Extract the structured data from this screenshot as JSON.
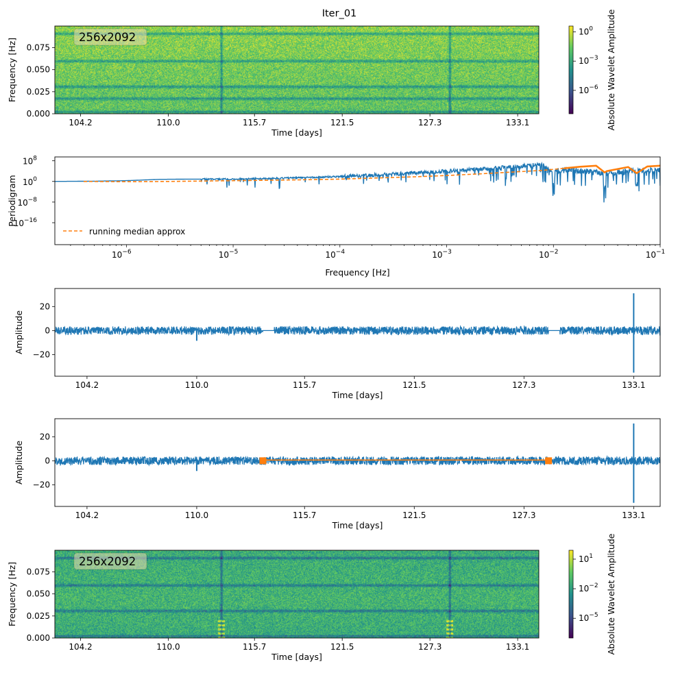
{
  "figure": {
    "title": "Iter_01"
  },
  "colors": {
    "series": "#1f77b4",
    "running_median": "#ff7f0e",
    "gaps": "#ff7f0e",
    "viridis": [
      "#440154",
      "#3b528b",
      "#21918c",
      "#5ec962",
      "#fde725"
    ]
  },
  "chart_data": [
    {
      "id": "spectrogram_original",
      "type": "heatmap",
      "annotation": "256x2092",
      "xlabel": "Time [days]",
      "ylabel": "Frequency [Hz]",
      "xlim": [
        102.5,
        134.5
      ],
      "ylim": [
        0,
        0.0995
      ],
      "xticks": [
        104.2,
        110.0,
        115.7,
        121.5,
        127.3,
        133.1
      ],
      "xtick_labels": [
        "104.2",
        "110.0",
        "115.7",
        "121.5",
        "127.3",
        "133.1"
      ],
      "yticks": [
        0,
        0.025,
        0.05,
        0.075
      ],
      "ytick_labels": [
        "0.000",
        "0.025",
        "0.050",
        "0.075"
      ],
      "frequency_dark_bands_hz": [
        0.0025,
        0.0175,
        0.031,
        0.06,
        0.091
      ],
      "time_glitch_lines_days": [
        113.5,
        128.6
      ],
      "colorbar": {
        "label": "Absolute Wavelet Amplitude",
        "scale": "log",
        "tick_exponents": [
          0,
          -3,
          -6
        ],
        "tick_labels": [
          "10^0",
          "10^-3",
          "10^-6"
        ],
        "range_log10": [
          -8.4,
          0.6
        ]
      }
    },
    {
      "id": "periodogram",
      "type": "line",
      "xlabel": "Frequency [Hz]",
      "ylabel": "Periodigram",
      "xscale": "log",
      "yscale": "log",
      "xlim_log10": [
        -6.67,
        -1
      ],
      "ylim_log10": [
        -24.5,
        9.5
      ],
      "xtick_exponents": [
        -6,
        -5,
        -4,
        -3,
        -2,
        -1
      ],
      "xtick_labels": [
        "10^-6",
        "10^-5",
        "10^-4",
        "10^-3",
        "10^-2",
        "10^-1"
      ],
      "ytick_exponents": [
        8,
        0,
        -8,
        -16
      ],
      "ytick_labels": [
        "10^8",
        "10^0",
        "10^-8",
        "10^-16"
      ],
      "series": [
        {
          "name": "periodogram",
          "style": "solid",
          "points_log10": [
            [
              -6.67,
              0
            ],
            [
              -6.3,
              0.1
            ],
            [
              -6.0,
              0.3
            ],
            [
              -5.7,
              0.8
            ],
            [
              -5.4,
              0.9
            ],
            [
              -5.0,
              0.9
            ],
            [
              -4.6,
              1.2
            ],
            [
              -4.3,
              1.5
            ],
            [
              -4.0,
              1.9
            ],
            [
              -3.6,
              2.6
            ],
            [
              -3.3,
              3.3
            ],
            [
              -3.0,
              4.0
            ],
            [
              -2.6,
              5.0
            ],
            [
              -2.3,
              6.0
            ],
            [
              -2.1,
              6.8
            ],
            [
              -2.03,
              4.0
            ],
            [
              -1.8,
              4.4
            ],
            [
              -1.5,
              3.0
            ],
            [
              -1.25,
              4.0
            ],
            [
              -1.0,
              4.5
            ]
          ]
        },
        {
          "name": "running median approx",
          "style": "dashed",
          "points_log10": [
            [
              -6.4,
              0
            ],
            [
              -6.0,
              -0.1
            ],
            [
              -5.6,
              0
            ],
            [
              -5.2,
              0.2
            ],
            [
              -4.8,
              0.4
            ],
            [
              -4.4,
              0.6
            ],
            [
              -4.0,
              0.9
            ],
            [
              -3.6,
              1.4
            ],
            [
              -3.3,
              1.8
            ],
            [
              -3.0,
              2.3
            ],
            [
              -2.7,
              2.9
            ],
            [
              -2.4,
              3.6
            ],
            [
              -2.1,
              4.3
            ],
            [
              -1.9,
              5.1
            ],
            [
              -1.75,
              5.7
            ],
            [
              -1.6,
              6.1
            ],
            [
              -1.52,
              3.5
            ],
            [
              -1.5,
              4.0
            ],
            [
              -1.3,
              5.6
            ],
            [
              -1.22,
              3.2
            ],
            [
              -1.12,
              5.8
            ],
            [
              -1.0,
              6.1
            ]
          ]
        }
      ],
      "deep_dips_log10_freq": [
        -2.0,
        -1.52,
        -1.22
      ],
      "legend": {
        "entries": [
          "running median approx"
        ],
        "position": "lower-left"
      }
    },
    {
      "id": "amplitude_original",
      "type": "line",
      "xlabel": "Time [days]",
      "ylabel": "Amplitude",
      "xlim": [
        102.5,
        134.5
      ],
      "ylim": [
        -38,
        35
      ],
      "xticks": [
        104.2,
        110.0,
        115.7,
        121.5,
        127.3,
        133.1
      ],
      "xtick_labels": [
        "104.2",
        "110.0",
        "115.7",
        "121.5",
        "127.3",
        "133.1"
      ],
      "yticks": [
        20,
        0,
        -20
      ],
      "ytick_labels": [
        "20",
        "0",
        "−20"
      ],
      "noise_band": [
        -3.5,
        3.5
      ],
      "gaps_days": [
        [
          113.5,
          114.1
        ],
        [
          128.6,
          129.2
        ]
      ],
      "spikes": [
        {
          "t": 110.0,
          "min": -8.5,
          "max": 1.5
        },
        {
          "t": 133.1,
          "min": -35,
          "max": 31
        }
      ]
    },
    {
      "id": "amplitude_filled",
      "type": "line",
      "xlabel": "Time [days]",
      "ylabel": "Amplitude",
      "xlim": [
        102.5,
        134.5
      ],
      "ylim": [
        -38,
        35
      ],
      "xticks": [
        104.2,
        110.0,
        115.7,
        121.5,
        127.3,
        133.1
      ],
      "xtick_labels": [
        "104.2",
        "110.0",
        "115.7",
        "121.5",
        "127.3",
        "133.1"
      ],
      "yticks": [
        20,
        0,
        -20
      ],
      "ytick_labels": [
        "20",
        "0",
        "−20"
      ],
      "noise_band": [
        -3.5,
        3.5
      ],
      "gap_markers_days": [
        113.5,
        128.6
      ],
      "gap_fill_line": {
        "from": 113.5,
        "to": 128.6,
        "value": 0.6
      },
      "spikes": [
        {
          "t": 110.0,
          "min": -8.5,
          "max": 1.5
        },
        {
          "t": 133.1,
          "min": -35,
          "max": 31
        }
      ]
    },
    {
      "id": "spectrogram_filled",
      "type": "heatmap",
      "annotation": "256x2092",
      "xlabel": "Time [days]",
      "ylabel": "Frequency [Hz]",
      "xlim": [
        102.5,
        134.5
      ],
      "ylim": [
        0,
        0.0995
      ],
      "xticks": [
        104.2,
        110.0,
        115.7,
        121.5,
        127.3,
        133.1
      ],
      "xtick_labels": [
        "104.2",
        "110.0",
        "115.7",
        "121.5",
        "127.3",
        "133.1"
      ],
      "yticks": [
        0,
        0.025,
        0.05,
        0.075
      ],
      "ytick_labels": [
        "0.000",
        "0.025",
        "0.050",
        "0.075"
      ],
      "frequency_dark_bands_hz": [
        0.0025,
        0.031,
        0.06,
        0.091
      ],
      "time_glitch_lines_days": [
        113.5,
        128.6
      ],
      "colorbar": {
        "label": "Absolute Wavelet Amplitude",
        "scale": "log",
        "tick_exponents": [
          1,
          -2,
          -5
        ],
        "tick_labels": [
          "10^1",
          "10^-2",
          "10^-5"
        ],
        "range_log10": [
          -7.0,
          1.9
        ]
      }
    }
  ]
}
